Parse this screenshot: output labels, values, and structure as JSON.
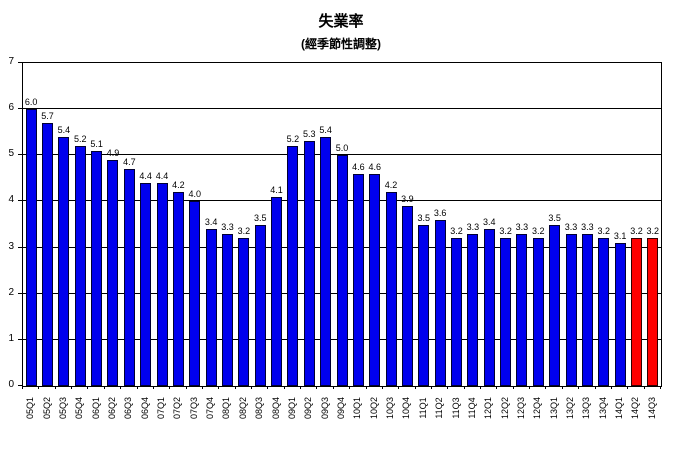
{
  "chart_data": {
    "type": "bar",
    "title": "失業率",
    "subtitle": "(經季節性調整)",
    "xlabel": "",
    "ylabel": "",
    "ylim": [
      0,
      7
    ],
    "yticks": [
      0,
      1,
      2,
      3,
      4,
      5,
      6,
      7
    ],
    "grid": true,
    "legend": "none",
    "categories": [
      "05Q1",
      "05Q2",
      "05Q3",
      "05Q4",
      "06Q1",
      "06Q2",
      "06Q3",
      "06Q4",
      "07Q1",
      "07Q2",
      "07Q3",
      "07Q4",
      "08Q1",
      "08Q2",
      "08Q3",
      "08Q4",
      "09Q1",
      "09Q2",
      "09Q3",
      "09Q4",
      "10Q1",
      "10Q2",
      "10Q3",
      "10Q4",
      "11Q1",
      "11Q2",
      "11Q3",
      "11Q4",
      "12Q1",
      "12Q2",
      "12Q3",
      "12Q4",
      "13Q1",
      "13Q2",
      "13Q3",
      "13Q4",
      "14Q1",
      "14Q2",
      "14Q3"
    ],
    "values": [
      6.0,
      5.7,
      5.4,
      5.2,
      5.1,
      4.9,
      4.7,
      4.4,
      4.4,
      4.2,
      4.0,
      3.4,
      3.3,
      3.2,
      3.5,
      4.1,
      5.2,
      5.3,
      5.4,
      5.0,
      4.6,
      4.6,
      4.2,
      3.9,
      3.5,
      3.6,
      3.2,
      3.3,
      3.4,
      3.2,
      3.3,
      3.2,
      3.5,
      3.3,
      3.3,
      3.2,
      3.1,
      3.2,
      3.2
    ],
    "value_labels_shown": true,
    "bar_color": "#0000EE",
    "bar_border": "#000033",
    "highlight_color": "#FF0000",
    "highlight_border": "#330000",
    "highlight_indices": [
      37,
      38
    ],
    "axis_color": "#000000",
    "gridline_color": "#000000"
  }
}
